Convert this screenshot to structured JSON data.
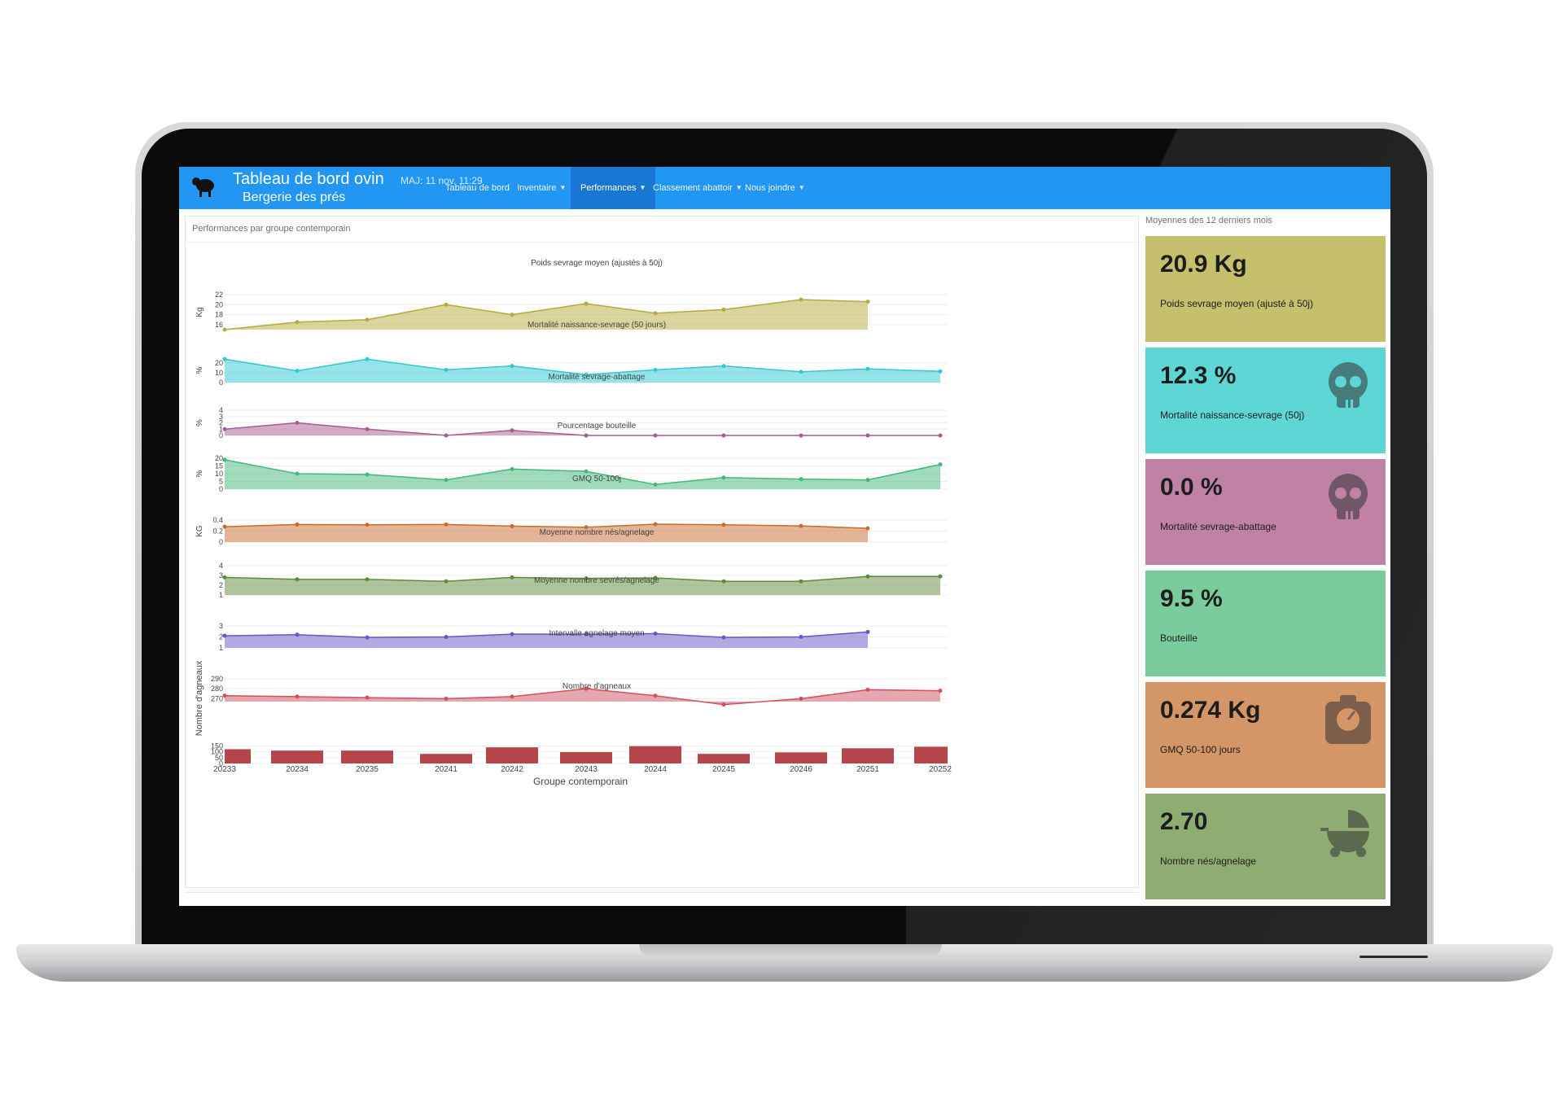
{
  "app": {
    "title": "Tableau de bord ovin",
    "update": "MAJ: 11 nov. 11:29",
    "farm": "Bergerie des prés"
  },
  "nav": {
    "items": [
      {
        "label": "Tableau de bord",
        "active": false,
        "dropdown": false
      },
      {
        "label": "Inventaire",
        "active": false,
        "dropdown": true
      },
      {
        "label": "Performances",
        "active": true,
        "dropdown": true
      },
      {
        "label": "Classement abattoir",
        "active": false,
        "dropdown": true
      },
      {
        "label": "Nous joindre",
        "active": false,
        "dropdown": true
      }
    ]
  },
  "left_panel": {
    "heading": "Performances par groupe contemporain"
  },
  "right_panel": {
    "heading": "Moyennes des 12 derniers mois"
  },
  "cards": [
    {
      "value": "20.9 Kg",
      "label": "Poids sevrage moyen (ajusté à 50j)",
      "color": "#c6bf6b",
      "icon": ""
    },
    {
      "value": "12.3 %",
      "label": "Mortalité naissance-sevrage (50j)",
      "color": "#5fd6d6",
      "icon": "skull-icon"
    },
    {
      "value": "0.0 %",
      "label": "Mortalité sevrage-abattage",
      "color": "#bf82a5",
      "icon": "skull-icon"
    },
    {
      "value": "9.5 %",
      "label": "Bouteille",
      "color": "#7acc9d",
      "icon": ""
    },
    {
      "value": "0.274 Kg",
      "label": "GMQ 50-100 jours",
      "color": "#d49567",
      "icon": "scale-icon"
    },
    {
      "value": "2.70",
      "label": "Nombre nés/agnelage",
      "color": "#8fad72",
      "icon": "stroller-icon"
    }
  ],
  "chart_data": [
    {
      "type": "area",
      "title": "Poids sevrage moyen (ajustés à 50j)",
      "ylabel": "Kg",
      "color": "#b4ab3a",
      "x": [
        "20233",
        "20234",
        "20235",
        "20241",
        "20242",
        "20243",
        "20244",
        "20245",
        "20246",
        "20251"
      ],
      "values": [
        15.0,
        16.5,
        17.0,
        20.0,
        18.0,
        20.2,
        18.3,
        19.0,
        21.0,
        20.6
      ],
      "ylim": [
        15,
        22
      ],
      "yticks": [
        16,
        18,
        20,
        22
      ]
    },
    {
      "type": "area",
      "title": "Mortalité naissance-sevrage (50 jours)",
      "ylabel": "%",
      "color": "#2ec9d6",
      "x": [
        "20233",
        "20234",
        "20235",
        "20241",
        "20242",
        "20243",
        "20244",
        "20245",
        "20246",
        "20251",
        "20252"
      ],
      "values": [
        24,
        12,
        24,
        13,
        17,
        8,
        13,
        17,
        11,
        14,
        11.5
      ],
      "ylim": [
        0,
        25
      ],
      "yticks": [
        0,
        10,
        20
      ]
    },
    {
      "type": "area",
      "title": "Mortalité sevrage-abattage",
      "ylabel": "%",
      "color": "#a85a90",
      "x": [
        "20233",
        "20234",
        "20235",
        "20241",
        "20242",
        "20243",
        "20244",
        "20245",
        "20246",
        "20251",
        "20252"
      ],
      "values": [
        1.0,
        2.0,
        1.0,
        0,
        0.8,
        0,
        0,
        0,
        0,
        0,
        0
      ],
      "ylim": [
        0,
        4
      ],
      "yticks": [
        0,
        1,
        2,
        3,
        4
      ]
    },
    {
      "type": "area",
      "title": "Pourcentage bouteille",
      "ylabel": "%",
      "color": "#42b87a",
      "x": [
        "20233",
        "20234",
        "20235",
        "20241",
        "20242",
        "20243",
        "20244",
        "20245",
        "20246",
        "20251",
        "20252"
      ],
      "values": [
        19,
        10,
        9.5,
        6,
        13,
        11.5,
        3,
        7.5,
        6.5,
        6,
        16
      ],
      "ylim": [
        0,
        20
      ],
      "yticks": [
        0,
        5,
        10,
        15,
        20
      ]
    },
    {
      "type": "area",
      "title": "GMQ 50-100j",
      "ylabel": "KG",
      "color": "#c86b2e",
      "x": [
        "20233",
        "20234",
        "20235",
        "20241",
        "20242",
        "20243",
        "20244",
        "20245",
        "20246",
        "20251"
      ],
      "values": [
        0.28,
        0.32,
        0.315,
        0.32,
        0.29,
        0.27,
        0.325,
        0.315,
        0.295,
        0.25
      ],
      "ylim": [
        0,
        0.4
      ],
      "yticks": [
        0,
        0.2,
        0.4
      ]
    },
    {
      "type": "area",
      "title": "Moyenne nombre nés/agnelage",
      "ylabel": "",
      "color": "#5f8a3a",
      "x": [
        "20233",
        "20234",
        "20235",
        "20241",
        "20242",
        "20243",
        "20244",
        "20245",
        "20246",
        "20251",
        "20252"
      ],
      "values": [
        2.8,
        2.6,
        2.6,
        2.4,
        2.8,
        2.7,
        2.75,
        2.4,
        2.4,
        2.9,
        2.9
      ],
      "ylim": [
        1,
        4
      ],
      "yticks": [
        1,
        2,
        3,
        4
      ]
    },
    {
      "type": "area",
      "title": "Moyenne nombre sevrés/agnelage",
      "ylabel": "",
      "color": "#6a55c8",
      "x": [
        "20233",
        "20234",
        "20235",
        "20241",
        "20242",
        "20243",
        "20244",
        "20245",
        "20246",
        "20251"
      ],
      "values": [
        2.1,
        2.2,
        1.95,
        2.0,
        2.25,
        2.25,
        2.3,
        1.95,
        2.0,
        2.45
      ],
      "ylim": [
        1,
        3
      ],
      "yticks": [
        1,
        2,
        3
      ]
    },
    {
      "type": "area",
      "title": "Intervalle agnelage moyen",
      "ylabel": "",
      "color": "#d0505f",
      "x": [
        "20233",
        "20234",
        "20235",
        "20241",
        "20242",
        "20243",
        "20244",
        "20245",
        "20246",
        "20251",
        "20252"
      ],
      "values": [
        273,
        272,
        271,
        270,
        272,
        280,
        273,
        264,
        270,
        279,
        278
      ],
      "ylim": [
        267,
        290
      ],
      "yticks": [
        270,
        280,
        290
      ]
    },
    {
      "type": "bar",
      "title": "Nombre d'agneaux",
      "ylabel": "Nombre d'agneaux",
      "xlabel": "Groupe contemporain",
      "color": "#b5454b",
      "categories": [
        "20233",
        "20234",
        "20235",
        "20241",
        "20242",
        "20243",
        "20244",
        "20245",
        "20246",
        "20251",
        "20252"
      ],
      "values": [
        122,
        110,
        110,
        82,
        138,
        97,
        148,
        82,
        95,
        130,
        143
      ],
      "ylim": [
        0,
        160
      ],
      "yticks": [
        0,
        50,
        100,
        150
      ]
    }
  ]
}
